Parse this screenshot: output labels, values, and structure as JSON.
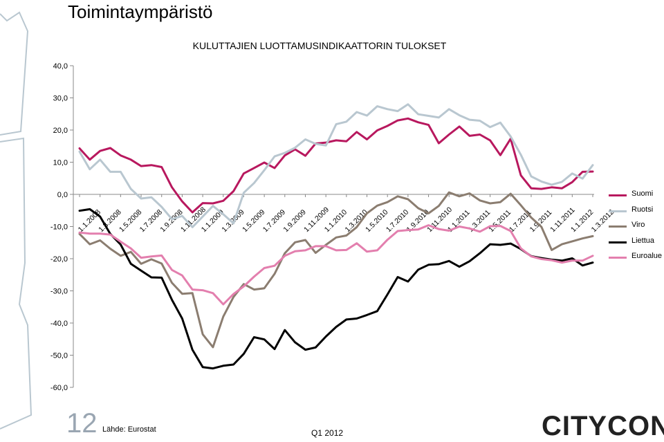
{
  "slide": {
    "title": "Toimintaympäristö",
    "page_number": "12",
    "source": "Lähde: Eurostat",
    "period": "Q1 2012",
    "logo_text": "CITYCON"
  },
  "chart_data": {
    "type": "line",
    "title": "KULUTTAJIEN LUOTTAMUSINDIKAATTORIN TULOKSET",
    "xlabel": "",
    "ylabel": "",
    "ylim": [
      -60,
      40
    ],
    "yticks": [
      "40,0",
      "30,0",
      "20,0",
      "10,0",
      "0,0",
      "-10,0",
      "-20,0",
      "-30,0",
      "-40,0",
      "-50,0",
      "-60,0"
    ],
    "ytick_values": [
      40,
      30,
      20,
      10,
      0,
      -10,
      -20,
      -30,
      -40,
      -50,
      -60
    ],
    "grid": false,
    "legend_position": "right",
    "x_tick_labels": [
      "1.1.2008",
      "1.3.2008",
      "1.5.2008",
      "1.7.2008",
      "1.9.2008",
      "1.11.2008",
      "1.1.2009",
      "1.3.2009",
      "1.5.2009",
      "1.7.2009",
      "1.9.2009",
      "1.11.2009",
      "1.1.2010",
      "1.3.2010",
      "1.5.2010",
      "1.7.2010",
      "1.9.2010",
      "1.11.2010",
      "1.1.2011",
      "1.3.2011",
      "1.5.2011",
      "1.7.2011",
      "1.9.2011",
      "1.11.2011",
      "1.1.2012",
      "1.3.2012"
    ],
    "categories": [
      "1.2008",
      "2.2008",
      "3.2008",
      "4.2008",
      "5.2008",
      "6.2008",
      "7.2008",
      "8.2008",
      "9.2008",
      "10.2008",
      "11.2008",
      "12.2008",
      "1.2009",
      "2.2009",
      "3.2009",
      "4.2009",
      "5.2009",
      "6.2009",
      "7.2009",
      "8.2009",
      "9.2009",
      "10.2009",
      "11.2009",
      "12.2009",
      "1.2010",
      "2.2010",
      "3.2010",
      "4.2010",
      "5.2010",
      "6.2010",
      "7.2010",
      "8.2010",
      "9.2010",
      "10.2010",
      "11.2010",
      "12.2010",
      "1.2011",
      "2.2011",
      "3.2011",
      "4.2011",
      "5.2011",
      "6.2011",
      "7.2011",
      "8.2011",
      "9.2011",
      "10.2011",
      "11.2011",
      "12.2011",
      "1.2012",
      "2.2012",
      "3.2012"
    ],
    "series": [
      {
        "name": "Suomi",
        "color": "#b8185e",
        "values": [
          14.3,
          10.8,
          13.5,
          14.4,
          12.1,
          10.8,
          8.8,
          9.1,
          8.5,
          2.2,
          -2.2,
          -5.6,
          -2.7,
          -2.8,
          -2.0,
          1.0,
          6.5,
          8.2,
          9.9,
          8.2,
          12.1,
          14.0,
          12.0,
          15.8,
          16.1,
          16.8,
          16.5,
          19.4,
          17.1,
          19.9,
          21.3,
          23.0,
          23.6,
          22.4,
          21.6,
          15.9,
          18.6,
          21.1,
          18.2,
          18.6,
          16.8,
          12.2,
          17.3,
          5.9,
          1.9,
          1.7,
          2.2,
          1.9,
          3.8,
          7.0,
          7.1
        ]
      },
      {
        "name": "Ruotsi",
        "color": "#b9c7d0",
        "values": [
          13.3,
          7.8,
          10.8,
          7.0,
          7.0,
          1.7,
          -1.3,
          -0.9,
          -3.9,
          -7.7,
          -6.7,
          -10.2,
          -6.9,
          -3.6,
          -6.2,
          -9.0,
          0.5,
          3.5,
          7.5,
          11.8,
          12.9,
          14.5,
          17.1,
          15.7,
          15.2,
          21.8,
          22.6,
          25.6,
          24.5,
          27.4,
          26.5,
          25.9,
          28.0,
          24.9,
          24.4,
          23.9,
          26.5,
          24.6,
          23.2,
          22.9,
          20.9,
          22.3,
          18.0,
          12.3,
          5.6,
          4.0,
          3.0,
          3.9,
          6.5,
          4.9,
          9.1
        ]
      },
      {
        "name": "Viro",
        "color": "#8b7d70",
        "values": [
          -12.3,
          -15.5,
          -14.3,
          -16.9,
          -19.1,
          -17.9,
          -21.6,
          -20.2,
          -21.5,
          -27.5,
          -30.9,
          -30.7,
          -43.5,
          -47.5,
          -38.0,
          -31.9,
          -27.9,
          -29.6,
          -29.2,
          -24.7,
          -18.3,
          -14.9,
          -14.2,
          -18.2,
          -15.7,
          -13.4,
          -12.8,
          -10.2,
          -5.9,
          -3.5,
          -2.4,
          -0.6,
          -1.5,
          -4.3,
          -5.9,
          -3.6,
          0.6,
          -0.6,
          0.3,
          -1.9,
          -2.8,
          -2.4,
          0.2,
          -3.4,
          -7.2,
          -10.1,
          -17.3,
          -15.5,
          -14.6,
          -13.7,
          -13.0
        ]
      },
      {
        "name": "Liettua",
        "color": "#000000",
        "values": [
          -5.1,
          -4.6,
          -6.9,
          -12.3,
          -15.6,
          -21.6,
          -23.7,
          -25.8,
          -25.9,
          -32.8,
          -38.6,
          -48.3,
          -53.7,
          -54.1,
          -53.3,
          -52.9,
          -49.6,
          -44.4,
          -45.1,
          -48.1,
          -42.2,
          -46.0,
          -48.3,
          -47.6,
          -44.2,
          -41.2,
          -38.9,
          -38.6,
          -37.5,
          -36.3,
          -31.1,
          -25.7,
          -27.1,
          -23.4,
          -21.9,
          -21.7,
          -20.7,
          -22.5,
          -20.8,
          -18.3,
          -15.5,
          -15.7,
          -15.3,
          -17.0,
          -19.2,
          -19.8,
          -20.3,
          -20.6,
          -19.9,
          -22.1,
          -21.2
        ]
      },
      {
        "name": "Euroalue",
        "color": "#e37fae",
        "values": [
          -11.9,
          -12.2,
          -12.2,
          -12.5,
          -14.7,
          -16.8,
          -19.7,
          -19.3,
          -19.0,
          -23.5,
          -25.2,
          -29.6,
          -29.8,
          -30.7,
          -34.2,
          -31.0,
          -28.6,
          -25.6,
          -22.9,
          -22.2,
          -19.1,
          -17.7,
          -17.4,
          -16.1,
          -16.1,
          -17.4,
          -17.3,
          -15.2,
          -17.8,
          -17.4,
          -14.1,
          -11.4,
          -11.1,
          -10.9,
          -9.6,
          -10.8,
          -11.3,
          -10.0,
          -10.6,
          -11.6,
          -9.9,
          -9.8,
          -11.4,
          -16.8,
          -19.3,
          -20.1,
          -20.5,
          -21.2,
          -20.6,
          -20.6,
          -19.1
        ]
      }
    ]
  }
}
